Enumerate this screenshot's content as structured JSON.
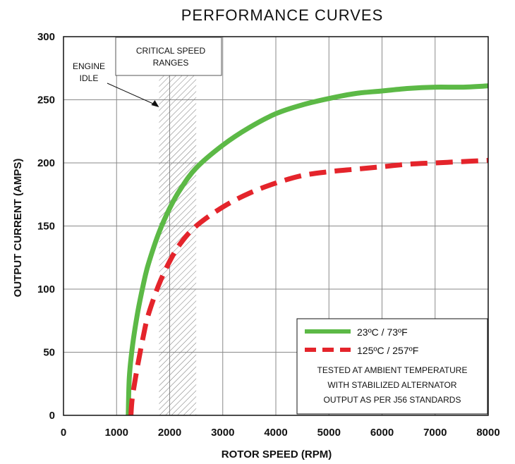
{
  "chart_data": {
    "type": "line",
    "title": "PERFORMANCE CURVES",
    "xlabel": "ROTOR SPEED (RPM)",
    "ylabel": "OUTPUT CURRENT (AMPS)",
    "xlim": [
      0,
      8000
    ],
    "ylim": [
      0,
      300
    ],
    "xticks": [
      "0",
      "1000",
      "2000",
      "3000",
      "4000",
      "5000",
      "6000",
      "7000",
      "8000"
    ],
    "yticks": [
      "0",
      "50",
      "100",
      "150",
      "200",
      "250",
      "300"
    ],
    "grid": true,
    "legend_position": "bottom-right",
    "series": [
      {
        "name": "23ºC / 73ºF",
        "color": "#5cb946",
        "style": "solid",
        "x": [
          1220,
          1240,
          1300,
          1400,
          1500,
          1600,
          1800,
          2000,
          2200,
          2500,
          3000,
          3500,
          4000,
          4500,
          5000,
          5500,
          6000,
          6500,
          7000,
          7500,
          8000
        ],
        "y": [
          0,
          30,
          55,
          82,
          103,
          120,
          145,
          164,
          179,
          196,
          214,
          228,
          239,
          246,
          251,
          255,
          257,
          259,
          260,
          260,
          261
        ]
      },
      {
        "name": "125ºC / 257ºF",
        "color": "#e4242b",
        "style": "dashed",
        "x": [
          1270,
          1300,
          1400,
          1500,
          1600,
          1800,
          2000,
          2200,
          2500,
          3000,
          3500,
          4000,
          4500,
          5000,
          5500,
          6000,
          6500,
          7000,
          7500,
          8000
        ],
        "y": [
          0,
          15,
          40,
          62,
          80,
          104,
          122,
          136,
          150,
          165,
          176,
          184,
          190,
          193,
          195,
          197,
          199,
          200,
          201,
          202
        ]
      }
    ],
    "annotations": {
      "critical_speed_label": "CRITICAL SPEED\nRANGES",
      "critical_speed_range": [
        1800,
        2500
      ],
      "engine_idle_label": "ENGINE\nIDLE",
      "engine_idle_rpm": 1800
    },
    "legend_note": "TESTED AT AMBIENT TEMPERATURE\nWITH  STABILIZED ALTERNATOR\nOUTPUT AS PER J56 STANDARDS"
  }
}
